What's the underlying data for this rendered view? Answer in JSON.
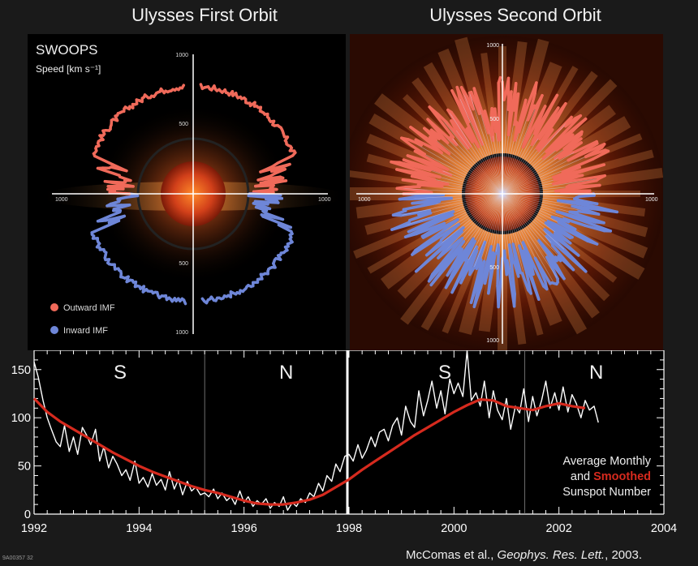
{
  "titles": {
    "left": "Ulysses First Orbit",
    "right": "Ulysses Second Orbit"
  },
  "polar_panel": {
    "instrument_label": "SWOOPS",
    "speed_label": "Speed [km s⁻¹]",
    "legend": {
      "outward": "Outward IMF",
      "inward": "Inward IMF"
    },
    "axis_ticks": {
      "left": [
        "1000",
        "500",
        "500",
        "1000",
        "1000",
        "1000"
      ],
      "right": [
        "1000",
        "500",
        "500",
        "1000",
        "1000",
        "1000"
      ]
    },
    "colors": {
      "outward": "#f06a5a",
      "inward": "#6e86d8"
    }
  },
  "chart_data": {
    "type": "line",
    "title": "",
    "xlabel": "",
    "ylabel": "",
    "xlim": [
      1992,
      2004
    ],
    "ylim": [
      0,
      170
    ],
    "x_ticks": [
      "1992",
      "1994",
      "1996",
      "1998",
      "2000",
      "2002",
      "2004"
    ],
    "y_ticks": [
      "0",
      "50",
      "100",
      "150"
    ],
    "regions": [
      {
        "label": "S",
        "orbit": 1
      },
      {
        "label": "N",
        "orbit": 1
      },
      {
        "label": "S",
        "orbit": 2
      },
      {
        "label": "N",
        "orbit": 2
      }
    ],
    "region_boundaries_year": [
      1995.25,
      1998.0,
      2001.35
    ],
    "legend_text": {
      "line1": "Average Monthly",
      "line2_prefix": "and",
      "line2_highlight": "Smoothed",
      "line3": "Sunspot Number"
    },
    "series": [
      {
        "name": "Average Monthly",
        "color": "#ffffff",
        "x": [
          1992.0,
          1992.08,
          1992.17,
          1992.25,
          1992.33,
          1992.42,
          1992.5,
          1992.58,
          1992.67,
          1992.75,
          1992.83,
          1992.92,
          1993.0,
          1993.08,
          1993.17,
          1993.25,
          1993.33,
          1993.42,
          1993.5,
          1993.58,
          1993.67,
          1993.75,
          1993.83,
          1993.92,
          1994.0,
          1994.08,
          1994.17,
          1994.25,
          1994.33,
          1994.42,
          1994.5,
          1994.58,
          1994.67,
          1994.75,
          1994.83,
          1994.92,
          1995.0,
          1995.08,
          1995.17,
          1995.25,
          1995.33,
          1995.42,
          1995.5,
          1995.58,
          1995.67,
          1995.75,
          1995.83,
          1995.92,
          1996.0,
          1996.08,
          1996.17,
          1996.25,
          1996.33,
          1996.42,
          1996.5,
          1996.58,
          1996.67,
          1996.75,
          1996.83,
          1996.92,
          1997.0,
          1997.08,
          1997.17,
          1997.25,
          1997.33,
          1997.42,
          1997.5,
          1997.58,
          1997.67,
          1997.75,
          1997.83,
          1997.92,
          1998.0,
          1998.08,
          1998.17,
          1998.25,
          1998.33,
          1998.42,
          1998.5,
          1998.58,
          1998.67,
          1998.75,
          1998.83,
          1998.92,
          1999.0,
          1999.08,
          1999.17,
          1999.25,
          1999.33,
          1999.42,
          1999.5,
          1999.58,
          1999.67,
          1999.75,
          1999.83,
          1999.92,
          2000.0,
          2000.08,
          2000.17,
          2000.25,
          2000.33,
          2000.42,
          2000.5,
          2000.58,
          2000.67,
          2000.75,
          2000.83,
          2000.92,
          2001.0,
          2001.08,
          2001.17,
          2001.25,
          2001.33,
          2001.42,
          2001.5,
          2001.58,
          2001.67,
          2001.75,
          2001.83,
          2001.92,
          2002.0,
          2002.08,
          2002.17,
          2002.25,
          2002.33,
          2002.42,
          2002.5,
          2002.58,
          2002.67,
          2002.75
        ],
        "values": [
          158,
          142,
          118,
          100,
          88,
          75,
          70,
          92,
          65,
          80,
          62,
          90,
          82,
          72,
          88,
          55,
          70,
          48,
          60,
          52,
          40,
          46,
          35,
          55,
          32,
          38,
          28,
          42,
          30,
          36,
          25,
          44,
          26,
          36,
          20,
          34,
          24,
          28,
          20,
          22,
          18,
          26,
          16,
          22,
          14,
          18,
          10,
          24,
          12,
          18,
          8,
          14,
          10,
          16,
          6,
          12,
          8,
          18,
          4,
          12,
          8,
          16,
          12,
          22,
          18,
          32,
          24,
          40,
          34,
          52,
          44,
          60,
          62,
          55,
          72,
          58,
          66,
          80,
          70,
          85,
          88,
          76,
          92,
          100,
          82,
          112,
          96,
          90,
          128,
          102,
          118,
          138,
          110,
          128,
          104,
          140,
          125,
          136,
          122,
          170,
          118,
          126,
          112,
          138,
          100,
          128,
          108,
          98,
          120,
          88,
          112,
          105,
          130,
          96,
          122,
          102,
          118,
          138,
          110,
          126,
          108,
          132,
          106,
          124,
          115,
          100,
          118,
          108,
          112,
          95
        ]
      },
      {
        "name": "Smoothed",
        "color": "#d62a1e",
        "x": [
          1992.0,
          1992.25,
          1992.5,
          1992.75,
          1993.0,
          1993.25,
          1993.5,
          1993.75,
          1994.0,
          1994.25,
          1994.5,
          1994.75,
          1995.0,
          1995.25,
          1995.5,
          1995.75,
          1996.0,
          1996.25,
          1996.5,
          1996.75,
          1997.0,
          1997.25,
          1997.5,
          1997.75,
          1998.0,
          1998.25,
          1998.5,
          1998.75,
          1999.0,
          1999.25,
          1999.5,
          1999.75,
          2000.0,
          2000.25,
          2000.5,
          2000.75,
          2001.0,
          2001.25,
          2001.5,
          2001.75,
          2002.0,
          2002.25,
          2002.5
        ],
        "values": [
          120,
          106,
          96,
          88,
          80,
          72,
          64,
          57,
          50,
          44,
          39,
          34,
          29,
          25,
          22,
          18,
          14,
          11,
          10,
          10,
          12,
          15,
          20,
          28,
          36,
          46,
          55,
          64,
          73,
          82,
          90,
          98,
          106,
          113,
          119,
          118,
          112,
          110,
          108,
          112,
          115,
          112,
          110
        ]
      }
    ]
  }
}
